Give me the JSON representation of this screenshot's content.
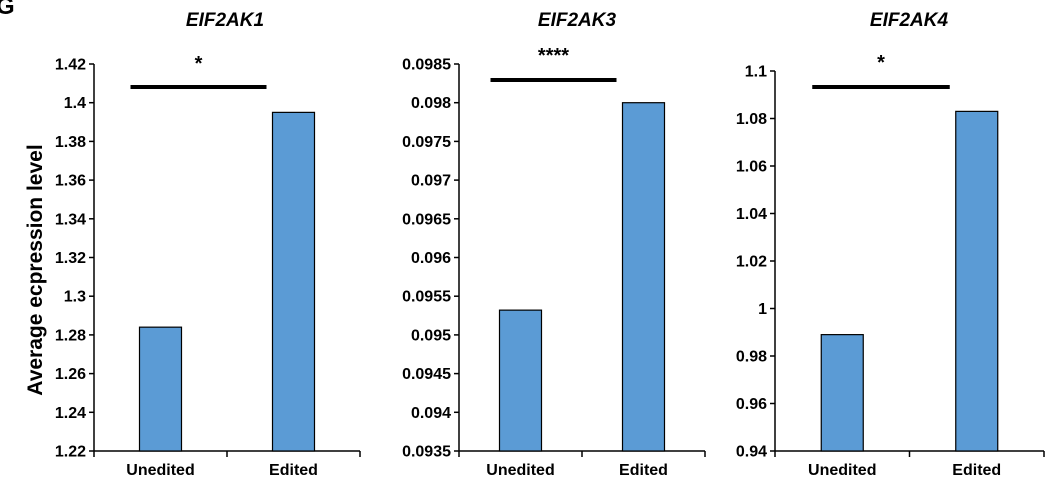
{
  "panel_letter": "G",
  "ylabel": "Average ecpression level",
  "bar_color": "#5B9BD5",
  "bar_stroke": "#000000",
  "chart_data": [
    {
      "type": "bar",
      "title": "EIF2AK1",
      "categories": [
        "Unedited",
        "Edited"
      ],
      "values": [
        1.284,
        1.395
      ],
      "ylim": [
        1.22,
        1.42
      ],
      "yticks": [
        1.22,
        1.24,
        1.26,
        1.28,
        1.3,
        1.32,
        1.34,
        1.36,
        1.38,
        1.4,
        1.42
      ],
      "ytick_labels": [
        "1.22",
        "1.24",
        "1.26",
        "1.28",
        "1.3",
        "1.32",
        "1.34",
        "1.36",
        "1.38",
        "1.4",
        "1.42"
      ],
      "significance": "*",
      "ylabel": "Average ecpression level",
      "grid": false,
      "legend": "none"
    },
    {
      "type": "bar",
      "title": "EIF2AK3",
      "categories": [
        "Unedited",
        "Edited"
      ],
      "values": [
        0.09532,
        0.098
      ],
      "ylim": [
        0.0935,
        0.0985
      ],
      "yticks": [
        0.0935,
        0.094,
        0.0945,
        0.095,
        0.0955,
        0.096,
        0.0965,
        0.097,
        0.0975,
        0.098,
        0.0985
      ],
      "ytick_labels": [
        "0.0935",
        "0.094",
        "0.0945",
        "0.095",
        "0.0955",
        "0.096",
        "0.0965",
        "0.097",
        "0.0975",
        "0.098",
        "0.0985"
      ],
      "significance": "****",
      "ylabel": "",
      "grid": false,
      "legend": "none"
    },
    {
      "type": "bar",
      "title": "EIF2AK4",
      "categories": [
        "Unedited",
        "Edited"
      ],
      "values": [
        0.989,
        1.083
      ],
      "ylim": [
        0.94,
        1.1
      ],
      "yticks": [
        0.94,
        0.96,
        0.98,
        1.0,
        1.02,
        1.04,
        1.06,
        1.08,
        1.1
      ],
      "ytick_labels": [
        "0.94",
        "0.96",
        "0.98",
        "1",
        "1.02",
        "1.04",
        "1.06",
        "1.08",
        "1.1"
      ],
      "significance": "*",
      "ylabel": "",
      "grid": false,
      "legend": "none"
    }
  ]
}
